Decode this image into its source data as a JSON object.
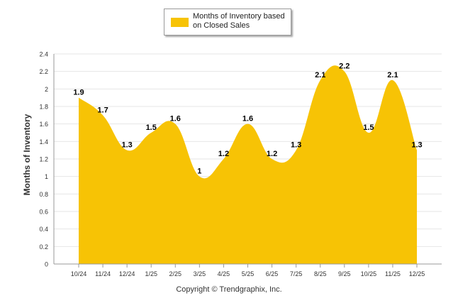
{
  "chart_data": {
    "type": "area",
    "legend": "Months of Inventory based on Closed Sales",
    "legend_position": "top-center",
    "ylabel": "Months of Inventory",
    "xlabel": "",
    "ylim": [
      0,
      2.4
    ],
    "yticks": [
      "0",
      "0.2",
      "0.4",
      "0.6",
      "0.8",
      "1",
      "1.2",
      "1.4",
      "1.6",
      "1.8",
      "2",
      "2.2",
      "2.4"
    ],
    "categories": [
      "10/24",
      "11/24",
      "12/24",
      "1/25",
      "2/25",
      "3/25",
      "4/25",
      "5/25",
      "6/25",
      "7/25",
      "8/25",
      "9/25",
      "10/25",
      "11/25",
      "12/25"
    ],
    "values": [
      1.9,
      1.7,
      1.3,
      1.5,
      1.6,
      1,
      1.2,
      1.6,
      1.2,
      1.3,
      2.1,
      2.2,
      1.5,
      2.1,
      1.3
    ],
    "data_labels": [
      "1.9",
      "1.7",
      "1.3",
      "1.5",
      "1.6",
      "1",
      "1.2",
      "1.6",
      "1.2",
      "1.3",
      "2.1",
      "2.2",
      "1.5",
      "2.1",
      "1.3"
    ],
    "grid": true,
    "colors": {
      "fill": "#f7c305",
      "grid": "#e6e6e6",
      "axis": "#999999",
      "text": "#333333"
    }
  },
  "footer": {
    "copyright": "Copyright © Trendgraphix, Inc."
  }
}
